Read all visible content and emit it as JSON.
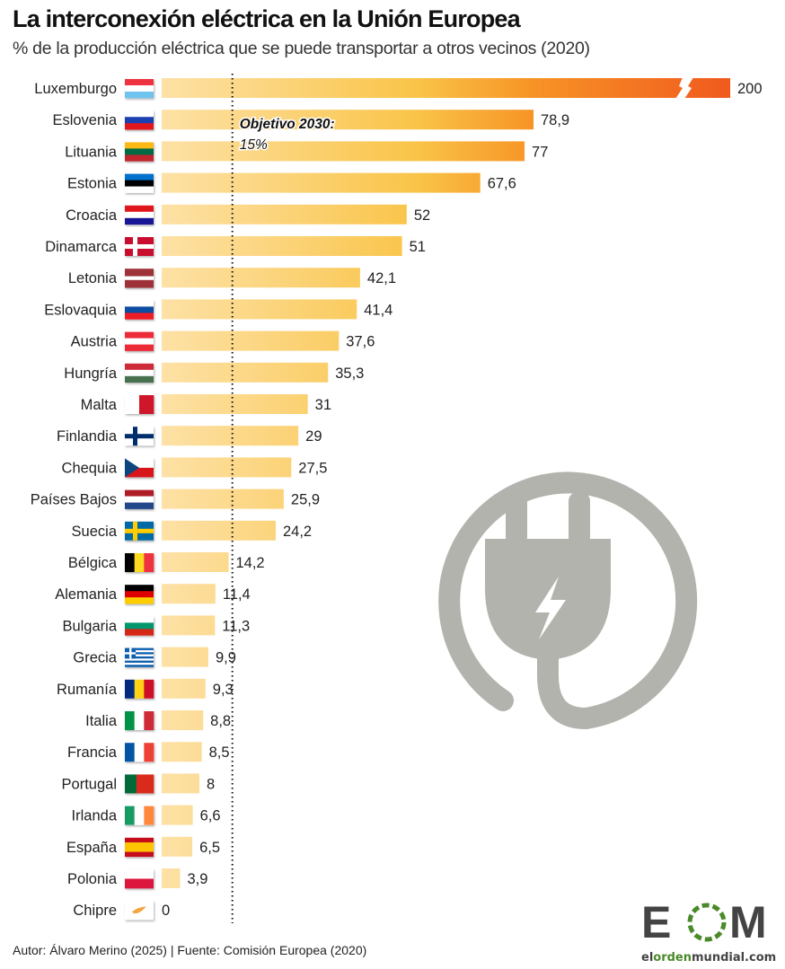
{
  "title": "La interconexión eléctrica en la Unión Europea",
  "subtitle": "% de la producción eléctrica que se puede transportar a otros vecinos (2020)",
  "footer": "Autor: Álvaro Merino (2025) | Fuente: Comisión Europea (2020)",
  "logo": {
    "letters": "EOM",
    "site": "elordenmundial.com",
    "colors": {
      "dark": "#444444",
      "green": "#4a8a2a"
    }
  },
  "chart_data": {
    "type": "bar",
    "orientation": "horizontal",
    "unit": "%",
    "xlim": [
      0,
      80
    ],
    "axis_break_on": "Luxemburgo",
    "reference_line": {
      "value": 15,
      "label_line1": "Objetivo 2030:",
      "label_line2": "15%",
      "style": "dotted"
    },
    "colors": {
      "bar_light": "#fde1a6",
      "bar_mid": "#f9c448",
      "bar_orange": "#f79426",
      "bar_red": "#f05a1e",
      "plug_icon": "#b3b3ad"
    },
    "categories": [
      "Luxemburgo",
      "Eslovenia",
      "Lituania",
      "Estonia",
      "Croacia",
      "Dinamarca",
      "Letonia",
      "Eslovaquia",
      "Austria",
      "Hungría",
      "Malta",
      "Finlandia",
      "Chequia",
      "Países Bajos",
      "Suecia",
      "Bélgica",
      "Alemania",
      "Bulgaria",
      "Grecia",
      "Rumanía",
      "Italia",
      "Francia",
      "Portugal",
      "Irlanda",
      "España",
      "Polonia",
      "Chipre"
    ],
    "values": [
      200,
      78.9,
      77,
      67.6,
      52,
      51,
      42.1,
      41.4,
      37.6,
      35.3,
      31,
      29,
      27.5,
      25.9,
      24.2,
      14.2,
      11.4,
      11.3,
      9.9,
      9.3,
      8.8,
      8.5,
      8,
      6.6,
      6.5,
      3.9,
      0
    ],
    "value_labels": [
      "200",
      "78,9",
      "77",
      "67,6",
      "52",
      "51",
      "42,1",
      "41,4",
      "37,6",
      "35,3",
      "31",
      "29",
      "27,5",
      "25,9",
      "24,2",
      "14,2",
      "11,4",
      "11,3",
      "9,9",
      "9,3",
      "8,8",
      "8,5",
      "8",
      "6,6",
      "6,5",
      "3,9",
      "0"
    ],
    "flags": [
      {
        "type": "h",
        "colors": [
          "#ef3340",
          "#ffffff",
          "#6fc3ee"
        ]
      },
      {
        "type": "h",
        "colors": [
          "#ffffff",
          "#1c3fb0",
          "#e0141e"
        ]
      },
      {
        "type": "h",
        "colors": [
          "#fdb913",
          "#006a44",
          "#c1272d"
        ]
      },
      {
        "type": "h",
        "colors": [
          "#0072ce",
          "#000000",
          "#ffffff"
        ]
      },
      {
        "type": "h",
        "colors": [
          "#e0141e",
          "#ffffff",
          "#171796"
        ]
      },
      {
        "type": "cross",
        "colors": [
          "#c8102e",
          "#ffffff"
        ]
      },
      {
        "type": "h",
        "colors": [
          "#9e3039",
          "#ffffff",
          "#9e3039"
        ],
        "ratio": [
          2,
          1,
          2
        ]
      },
      {
        "type": "h",
        "colors": [
          "#ffffff",
          "#0b4ea2",
          "#ee1c25"
        ]
      },
      {
        "type": "h",
        "colors": [
          "#ed2939",
          "#ffffff",
          "#ed2939"
        ]
      },
      {
        "type": "h",
        "colors": [
          "#ce2939",
          "#ffffff",
          "#477050"
        ]
      },
      {
        "type": "v",
        "colors": [
          "#ffffff",
          "#cf142b"
        ]
      },
      {
        "type": "cross",
        "colors": [
          "#ffffff",
          "#002f6c"
        ]
      },
      {
        "type": "czech",
        "colors": [
          "#ffffff",
          "#d7141a",
          "#11457e"
        ]
      },
      {
        "type": "h",
        "colors": [
          "#ae1c28",
          "#ffffff",
          "#21468b"
        ]
      },
      {
        "type": "cross",
        "colors": [
          "#006aa7",
          "#fecc00"
        ]
      },
      {
        "type": "v",
        "colors": [
          "#000000",
          "#fdda24",
          "#ef3340"
        ]
      },
      {
        "type": "h",
        "colors": [
          "#000000",
          "#dd0000",
          "#ffce00"
        ]
      },
      {
        "type": "h",
        "colors": [
          "#ffffff",
          "#00966e",
          "#d62612"
        ]
      },
      {
        "type": "greece",
        "colors": [
          "#0d5eaf",
          "#ffffff"
        ]
      },
      {
        "type": "v",
        "colors": [
          "#002b7f",
          "#fcd116",
          "#ce1126"
        ]
      },
      {
        "type": "v",
        "colors": [
          "#009246",
          "#ffffff",
          "#ce2b37"
        ]
      },
      {
        "type": "v",
        "colors": [
          "#0055a4",
          "#ffffff",
          "#ef4135"
        ]
      },
      {
        "type": "v",
        "colors": [
          "#046a38",
          "#da291c"
        ],
        "ratio": [
          2,
          3
        ]
      },
      {
        "type": "v",
        "colors": [
          "#169b62",
          "#ffffff",
          "#ff883e"
        ]
      },
      {
        "type": "h",
        "colors": [
          "#c60b1e",
          "#ffc400",
          "#c60b1e"
        ],
        "ratio": [
          1,
          2,
          1
        ]
      },
      {
        "type": "h",
        "colors": [
          "#ffffff",
          "#dc143c"
        ]
      },
      {
        "type": "cyprus",
        "colors": [
          "#ffffff",
          "#f2a541"
        ]
      }
    ]
  }
}
